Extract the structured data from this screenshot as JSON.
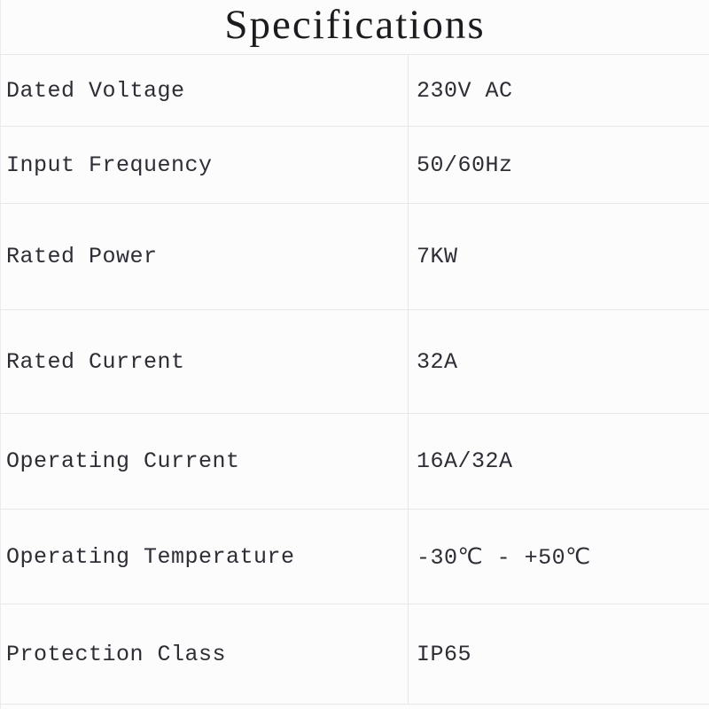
{
  "page": {
    "title": "Specifications"
  },
  "colors": {
    "background": "#fcfcfc",
    "grid_line": "#e7e7ea",
    "title_text": "#1c1c20",
    "body_text": "#2d2d36"
  },
  "table": {
    "rows": [
      {
        "label": "Dated Voltage",
        "value": "230V AC"
      },
      {
        "label": "Input Frequency",
        "value": "50/60Hz"
      },
      {
        "label": "Rated Power",
        "value": "7KW"
      },
      {
        "label": "Rated Current",
        "value": "32A"
      },
      {
        "label": "Operating Current",
        "value": "16A/32A"
      },
      {
        "label": "Operating Temperature",
        "value": "-30℃ - +50℃"
      },
      {
        "label": "Protection Class",
        "value": "IP65"
      }
    ]
  }
}
